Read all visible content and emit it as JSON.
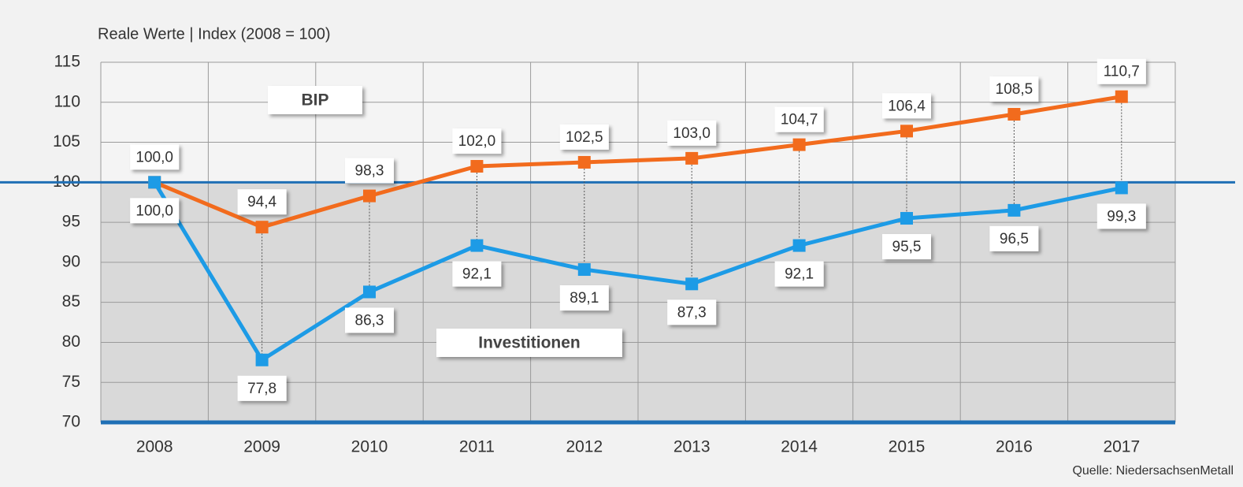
{
  "chart_data": {
    "type": "line",
    "subtitle": "Reale Werte | Index (2008 = 100)",
    "source": "Quelle: NiedersachsenMetall",
    "categories": [
      "2008",
      "2009",
      "2010",
      "2011",
      "2012",
      "2013",
      "2014",
      "2015",
      "2016",
      "2017"
    ],
    "series": [
      {
        "name": "BIP",
        "color": "#f26b1d",
        "values": [
          100.0,
          94.4,
          98.3,
          102.0,
          102.5,
          103.0,
          104.7,
          106.4,
          108.5,
          110.7
        ],
        "value_labels": [
          "100,0",
          "94,4",
          "98,3",
          "102,0",
          "102,5",
          "103,0",
          "104,7",
          "106,4",
          "108,5",
          "110,7"
        ]
      },
      {
        "name": "Investitionen",
        "color": "#1d9be6",
        "values": [
          100.0,
          77.8,
          86.3,
          92.1,
          89.1,
          87.3,
          92.1,
          95.5,
          96.5,
          99.3
        ],
        "value_labels": [
          "100,0",
          "77,8",
          "86,3",
          "92,1",
          "89,1",
          "87,3",
          "92,1",
          "95,5",
          "96,5",
          "99,3"
        ]
      }
    ],
    "ylim": [
      70,
      115
    ],
    "yticks": [
      70,
      75,
      80,
      85,
      90,
      95,
      100,
      105,
      110,
      115
    ],
    "baseline": 100,
    "grid": true
  }
}
